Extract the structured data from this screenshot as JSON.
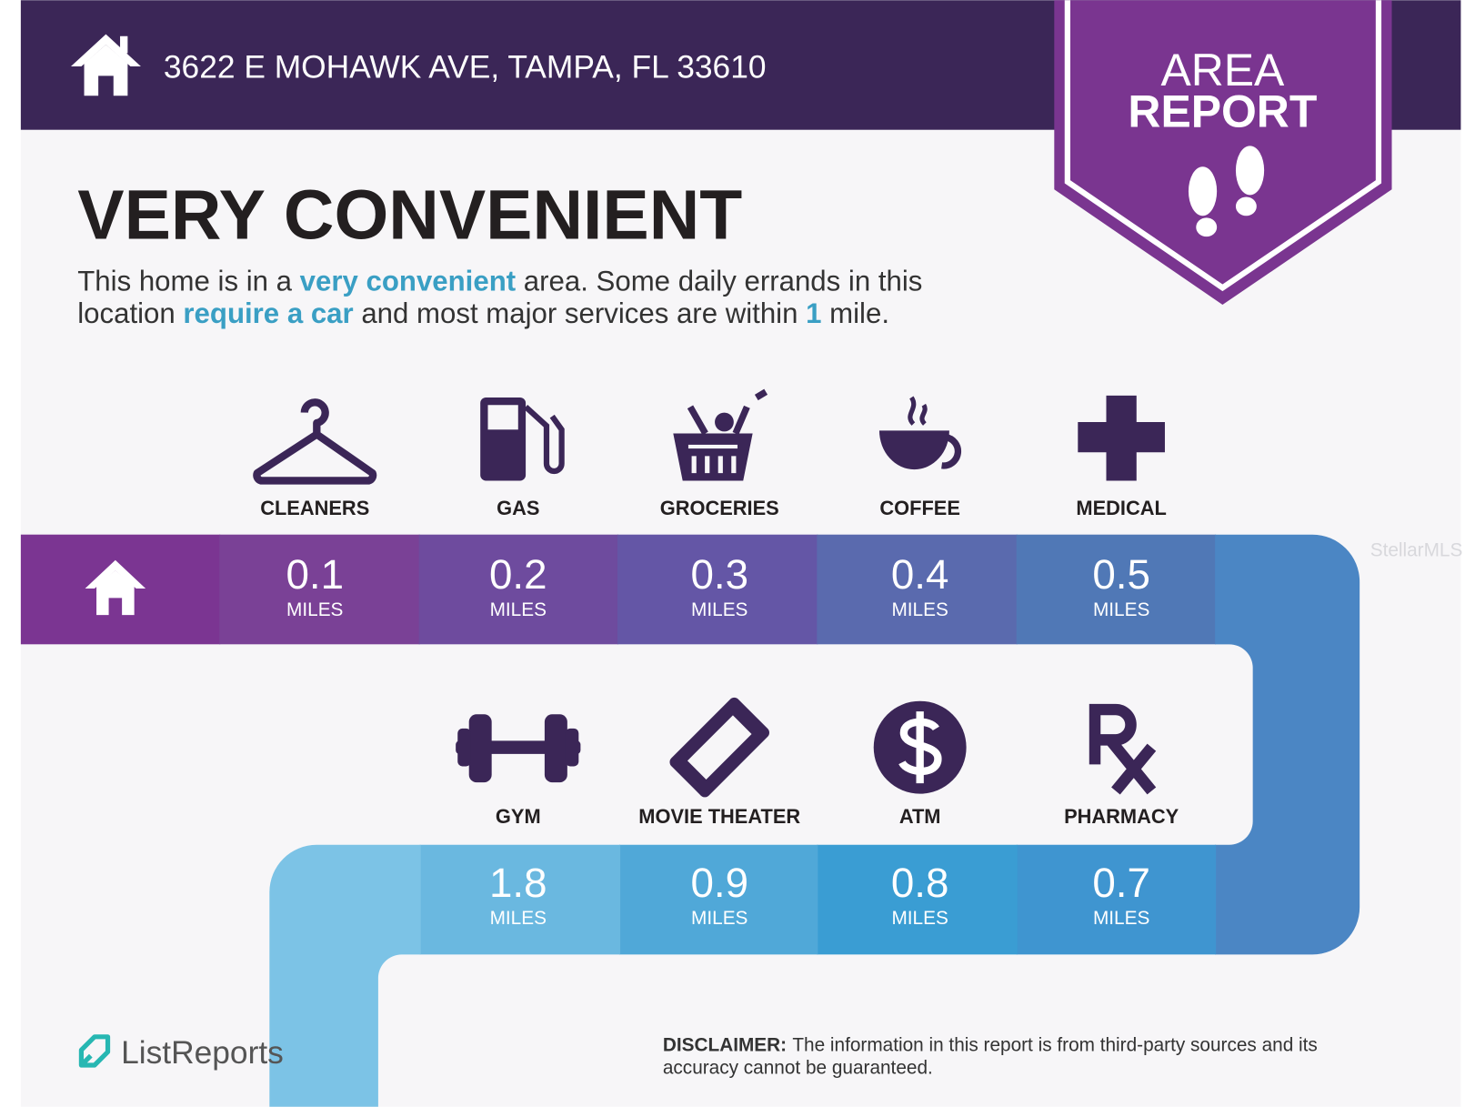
{
  "header": {
    "address": "3622 E MOHAWK AVE, TAMPA, FL 33610"
  },
  "badge": {
    "line1": "AREA",
    "line2": "REPORT"
  },
  "headline": "VERY CONVENIENT",
  "description": {
    "lines": [
      [
        {
          "text": "This home is in a "
        },
        {
          "text": "very convenient",
          "highlight": true
        },
        {
          "text": " area. Some daily errands in this"
        }
      ],
      [
        {
          "text": "location "
        },
        {
          "text": "require a car",
          "highlight": true
        },
        {
          "text": " and most major services are within "
        },
        {
          "text": "1",
          "highlight": true
        },
        {
          "text": " mile."
        }
      ]
    ]
  },
  "rows": [
    [
      {
        "label": "CLEANERS",
        "distance": 0.1,
        "unit": "MILES"
      },
      {
        "label": "GAS",
        "distance": 0.2,
        "unit": "MILES"
      },
      {
        "label": "GROCERIES",
        "distance": 0.3,
        "unit": "MILES"
      },
      {
        "label": "COFFEE",
        "distance": 0.4,
        "unit": "MILES"
      },
      {
        "label": "MEDICAL",
        "distance": 0.5,
        "unit": "MILES"
      }
    ],
    [
      {
        "label": "GYM",
        "distance": 1.8,
        "unit": "MILES"
      },
      {
        "label": "MOVIE THEATER",
        "distance": 0.9,
        "unit": "MILES"
      },
      {
        "label": "ATM",
        "distance": 0.8,
        "unit": "MILES"
      },
      {
        "label": "PHARMACY",
        "distance": 0.7,
        "unit": "MILES"
      }
    ]
  ],
  "watermark": "StellarMLS",
  "logo": "ListReports",
  "disclaimer": {
    "label": "DISCLAIMER:",
    "lines": [
      "The information in this report is from third-party sources and its",
      "accuracy cannot be guaranteed."
    ]
  }
}
